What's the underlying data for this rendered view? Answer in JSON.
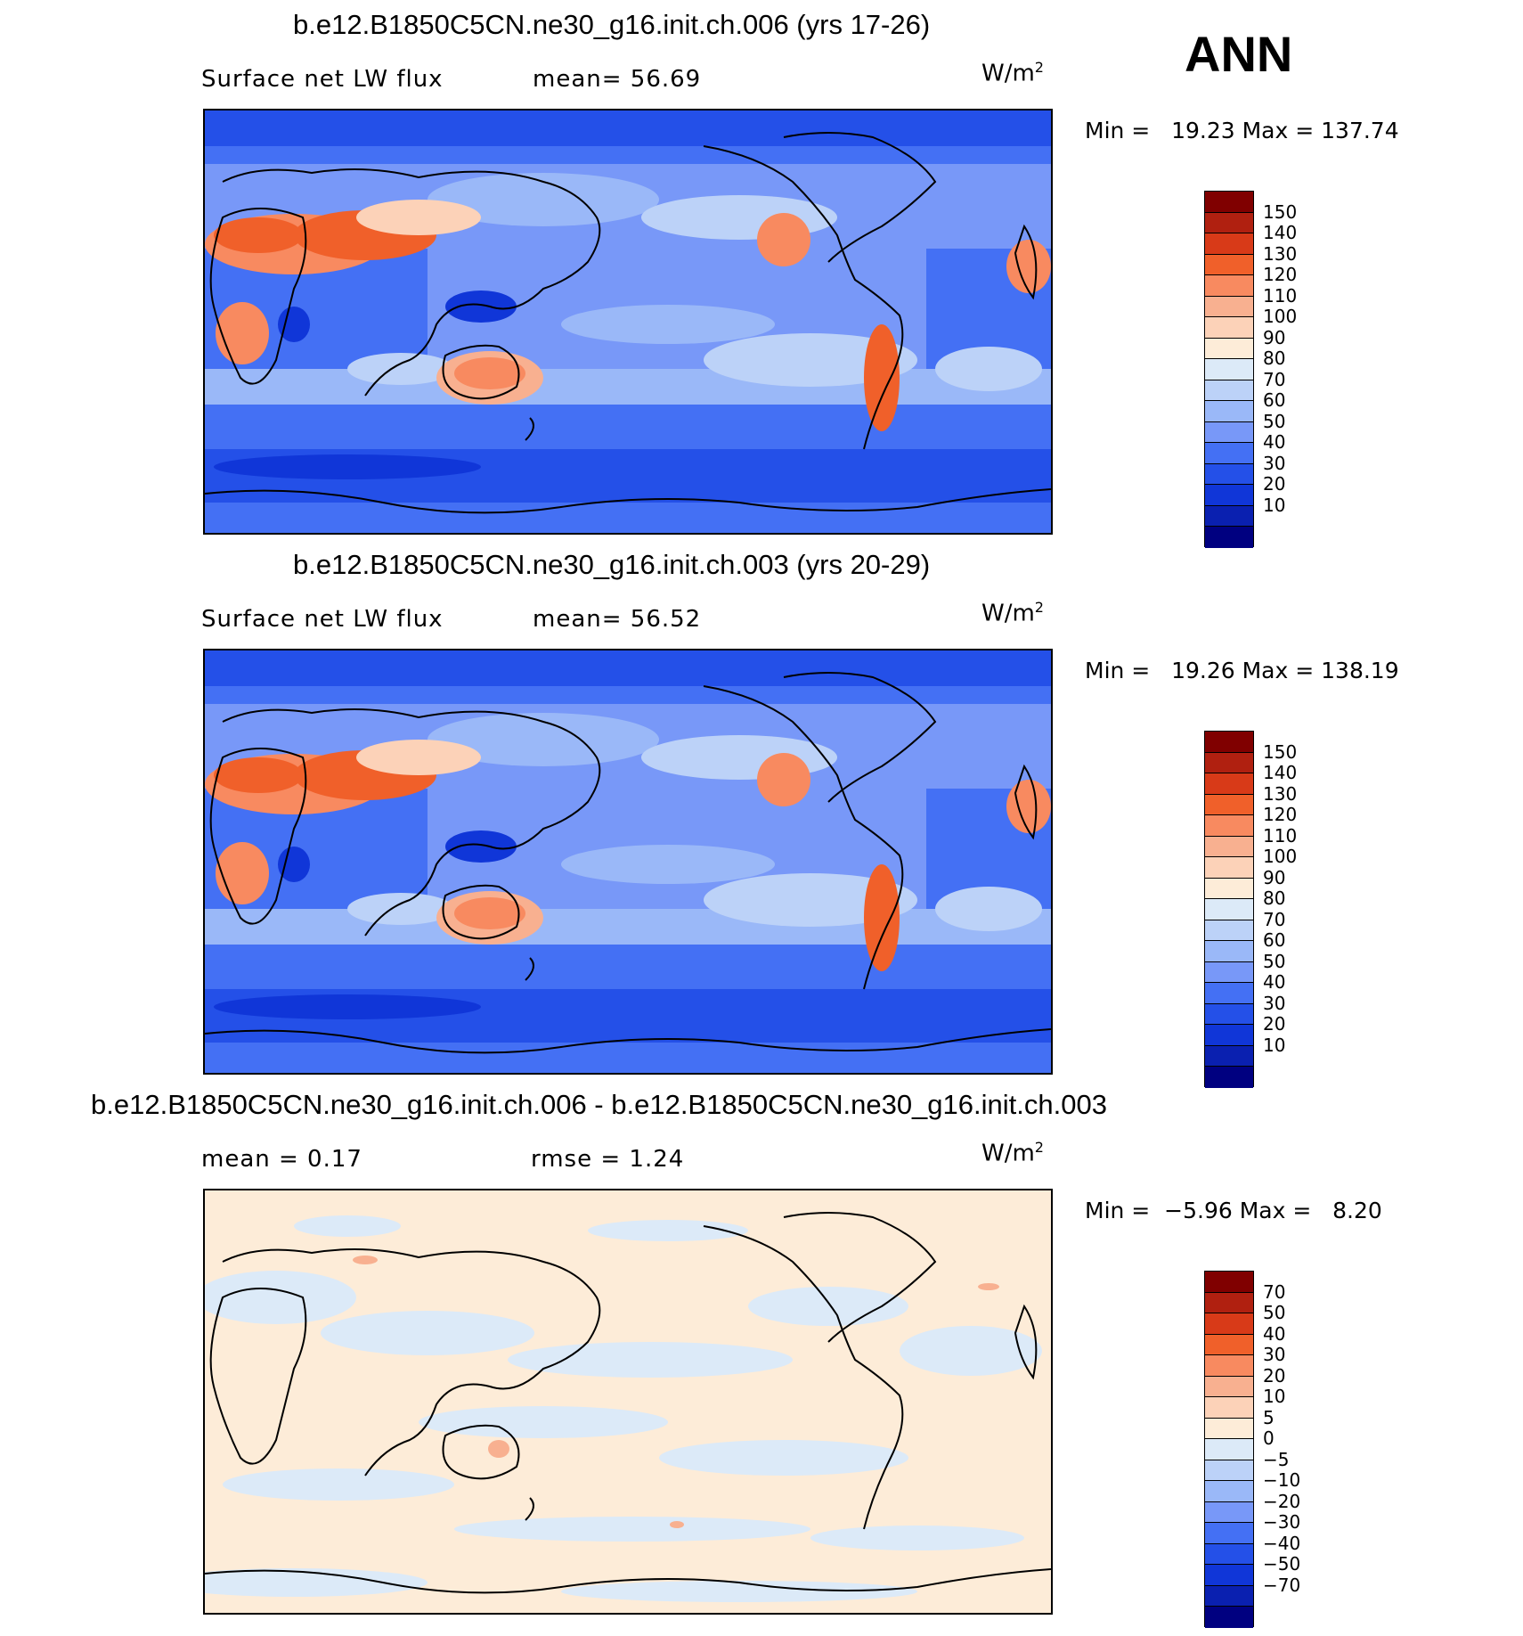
{
  "header": {
    "season": "ANN"
  },
  "panels": [
    {
      "title": "b.e12.B1850C5CN.ne30_g16.init.ch.006 (yrs 17-26)",
      "left_label": "Surface net LW flux",
      "right_label": "mean=  56.69",
      "unit_base": "W/m",
      "unit_exp": "2",
      "minmax": "Min =   19.23 Max = 137.74",
      "colorbar": {
        "labels": [
          "150",
          "140",
          "130",
          "120",
          "110",
          "100",
          "90",
          "80",
          "70",
          "60",
          "50",
          "40",
          "30",
          "20",
          "10"
        ],
        "colors": [
          "#800000",
          "#b02010",
          "#d83a18",
          "#f0602a",
          "#f88a60",
          "#f8b090",
          "#fcd2b8",
          "#fdecd8",
          "#dceaf8",
          "#bcd2f8",
          "#9ab8f8",
          "#7898f8",
          "#4470f4",
          "#2450e8",
          "#1036d8",
          "#0a20b0",
          "#000080"
        ]
      }
    },
    {
      "title": "b.e12.B1850C5CN.ne30_g16.init.ch.003 (yrs 20-29)",
      "left_label": "Surface net LW flux",
      "right_label": "mean=  56.52",
      "unit_base": "W/m",
      "unit_exp": "2",
      "minmax": "Min =   19.26 Max = 138.19",
      "colorbar": {
        "labels": [
          "150",
          "140",
          "130",
          "120",
          "110",
          "100",
          "90",
          "80",
          "70",
          "60",
          "50",
          "40",
          "30",
          "20",
          "10"
        ],
        "colors": [
          "#800000",
          "#b02010",
          "#d83a18",
          "#f0602a",
          "#f88a60",
          "#f8b090",
          "#fcd2b8",
          "#fdecd8",
          "#dceaf8",
          "#bcd2f8",
          "#9ab8f8",
          "#7898f8",
          "#4470f4",
          "#2450e8",
          "#1036d8",
          "#0a20b0",
          "#000080"
        ]
      }
    },
    {
      "title": "b.e12.B1850C5CN.ne30_g16.init.ch.006 - b.e12.B1850C5CN.ne30_g16.init.ch.003",
      "left_label": "mean =   0.17",
      "right_label": "rmse =   1.24",
      "unit_base": "W/m",
      "unit_exp": "2",
      "minmax": "Min =  −5.96 Max =   8.20",
      "colorbar": {
        "labels": [
          "70",
          "50",
          "40",
          "30",
          "20",
          "10",
          "5",
          "0",
          "−5",
          "−10",
          "−20",
          "−30",
          "−40",
          "−50",
          "−70"
        ],
        "colors": [
          "#800000",
          "#b02010",
          "#d83a18",
          "#f0602a",
          "#f88a60",
          "#f8b090",
          "#fcd2b8",
          "#fdecd8",
          "#dceaf8",
          "#bcd2f8",
          "#9ab8f8",
          "#7898f8",
          "#4470f4",
          "#2450e8",
          "#1036d8",
          "#0a20b0",
          "#000080"
        ]
      }
    }
  ]
}
